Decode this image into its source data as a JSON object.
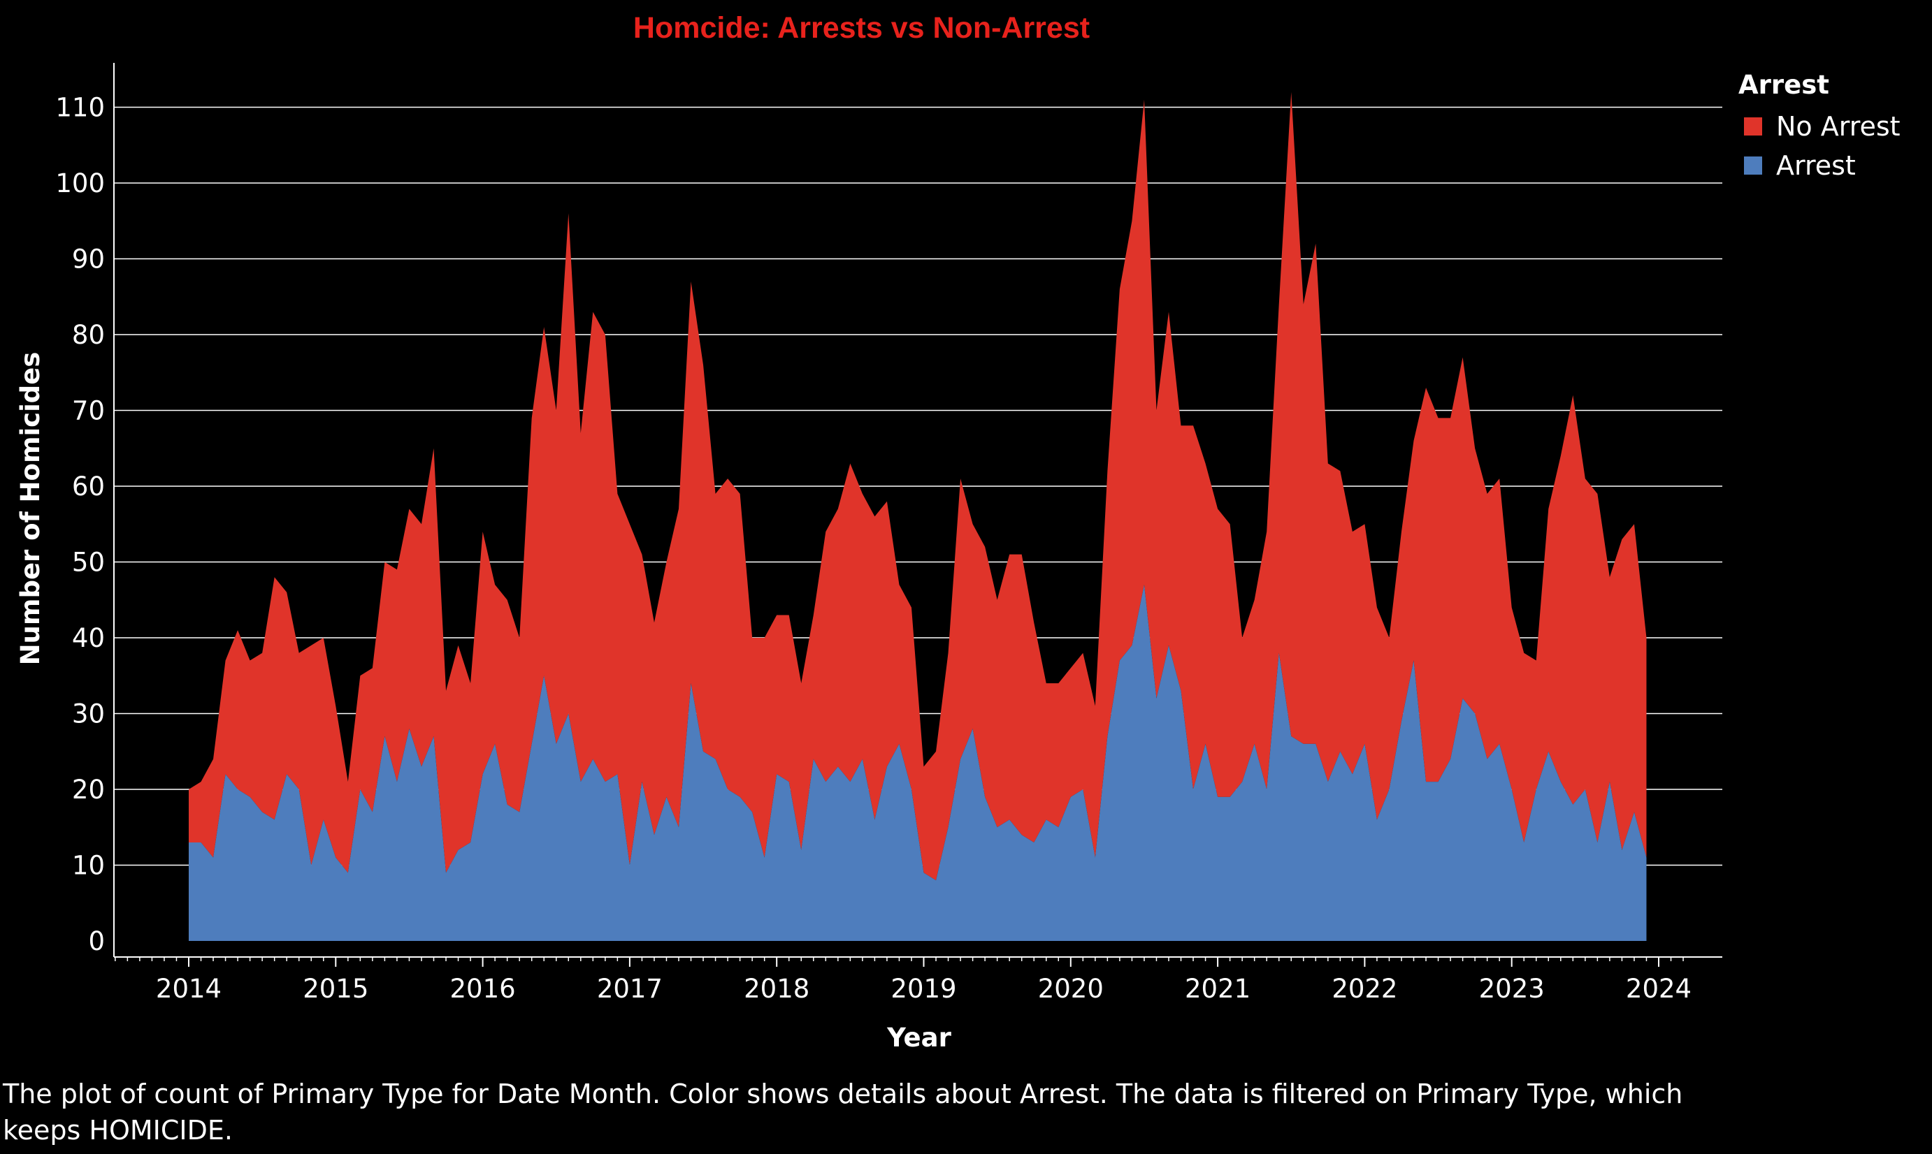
{
  "chart": {
    "title": "Homcide: Arrests vs Non-Arrest",
    "caption": "The plot of count of Primary Type for Date Month.  Color shows details about Arrest. The data is filtered on Primary Type, which keeps HOMICIDE.",
    "legend_title": "Arrest",
    "colors": {
      "no_arrest": "#e0342a",
      "arrest": "#4e7dbd",
      "title": "#e8221c",
      "background": "#000000",
      "grid": "#ffffff",
      "text": "#ffffff"
    }
  },
  "chart_data": {
    "type": "area",
    "stacked": true,
    "title": "Homcide: Arrests vs Non-Arrest",
    "xlabel": "Year",
    "ylabel": "Number of Homicides",
    "ylim": [
      0,
      118
    ],
    "xlim": [
      2013.5,
      2024.25
    ],
    "yticks": [
      0,
      10,
      20,
      30,
      40,
      50,
      60,
      70,
      80,
      90,
      100,
      110
    ],
    "xticks": [
      "2014",
      "2015",
      "2016",
      "2017",
      "2018",
      "2019",
      "2020",
      "2021",
      "2022",
      "2023",
      "2024"
    ],
    "grid": true,
    "legend_position": "top-right",
    "x_start": "2014-01",
    "x_interval": "month",
    "series": [
      {
        "name": "Arrest",
        "color": "#4e7dbd",
        "values": [
          13,
          13,
          11,
          22,
          20,
          19,
          17,
          16,
          22,
          20,
          10,
          16,
          11,
          9,
          20,
          17,
          27,
          21,
          28,
          23,
          27,
          9,
          12,
          13,
          22,
          26,
          18,
          17,
          26,
          35,
          26,
          30,
          21,
          24,
          21,
          22,
          10,
          21,
          14,
          19,
          15,
          34,
          25,
          24,
          20,
          19,
          17,
          11,
          22,
          21,
          12,
          24,
          21,
          23,
          21,
          24,
          16,
          23,
          26,
          20,
          9,
          8,
          15,
          24,
          28,
          19,
          15,
          16,
          14,
          13,
          16,
          15,
          19,
          20,
          11,
          27,
          37,
          39,
          47,
          32,
          39,
          33,
          20,
          26,
          19,
          19,
          21,
          26,
          20,
          38,
          27,
          26,
          26,
          21,
          25,
          22,
          26,
          16,
          20,
          29,
          37,
          21,
          21,
          24,
          32,
          30,
          24,
          26,
          20,
          13,
          20,
          25,
          21,
          18,
          20,
          13,
          21,
          12,
          17,
          11
        ]
      },
      {
        "name": "No Arrest",
        "color": "#e0342a",
        "values": [
          7,
          8,
          13,
          15,
          21,
          18,
          21,
          32,
          24,
          18,
          29,
          24,
          20,
          12,
          15,
          19,
          23,
          28,
          29,
          32,
          38,
          24,
          27,
          21,
          32,
          21,
          27,
          23,
          43,
          46,
          44,
          66,
          46,
          59,
          59,
          37,
          45,
          30,
          28,
          31,
          42,
          53,
          51,
          35,
          41,
          40,
          23,
          29,
          21,
          22,
          22,
          19,
          33,
          34,
          42,
          35,
          40,
          35,
          21,
          24,
          14,
          17,
          23,
          37,
          27,
          33,
          30,
          35,
          37,
          29,
          18,
          19,
          17,
          18,
          20,
          35,
          49,
          56,
          64,
          38,
          44,
          35,
          48,
          37,
          38,
          36,
          19,
          19,
          34,
          46,
          85,
          58,
          66,
          42,
          37,
          32,
          29,
          28,
          20,
          25,
          29,
          52,
          48,
          45,
          45,
          35,
          35,
          35,
          24,
          25,
          17,
          32,
          43,
          54,
          41,
          46,
          27,
          41,
          38,
          29
        ]
      }
    ]
  }
}
